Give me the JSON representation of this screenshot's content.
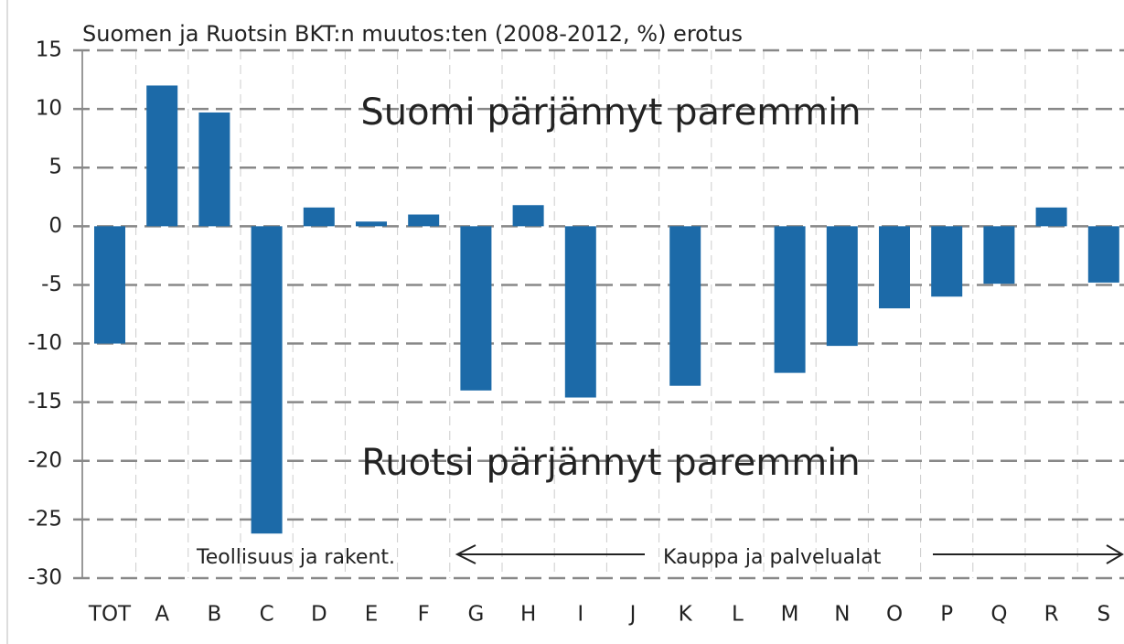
{
  "chart_data": {
    "type": "bar",
    "title": "Suomen ja Ruotsin BKT:n muutos:ten (2008-2012, %) erotus",
    "categories": [
      "TOT",
      "A",
      "B",
      "C",
      "D",
      "E",
      "F",
      "G",
      "H",
      "I",
      "J",
      "K",
      "L",
      "M",
      "N",
      "O",
      "P",
      "Q",
      "R",
      "S"
    ],
    "values": [
      -10,
      12,
      9.7,
      -26.2,
      1.6,
      0.4,
      1.0,
      -14,
      1.8,
      -14.6,
      null,
      -13.6,
      null,
      -12.5,
      -10.2,
      -7,
      -6,
      -4.9,
      1.6,
      -4.8
    ],
    "color": "#1c6aa8",
    "ylim": [
      -30,
      15
    ],
    "yticks": [
      15,
      10,
      5,
      0,
      -5,
      -10,
      -15,
      -20,
      -25,
      -30
    ],
    "grid": true,
    "annotations": [
      {
        "text": "Suomi pärjännyt paremmin",
        "color": "#3aaee0"
      },
      {
        "text": "Ruotsi pärjännyt paremmin",
        "color": "#f2b705"
      },
      {
        "text": "Teollisuus ja rakent."
      },
      {
        "text": "Kauppa ja palvelualat"
      }
    ]
  }
}
